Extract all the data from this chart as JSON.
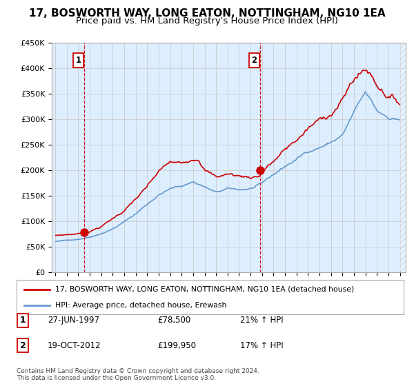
{
  "title": "17, BOSWORTH WAY, LONG EATON, NOTTINGHAM, NG10 1EA",
  "subtitle": "Price paid vs. HM Land Registry's House Price Index (HPI)",
  "ylim": [
    0,
    450000
  ],
  "yticks": [
    0,
    50000,
    100000,
    150000,
    200000,
    250000,
    300000,
    350000,
    400000,
    450000
  ],
  "ytick_labels": [
    "£0",
    "£50K",
    "£100K",
    "£150K",
    "£200K",
    "£250K",
    "£300K",
    "£350K",
    "£400K",
    "£450K"
  ],
  "legend_line1": "17, BOSWORTH WAY, LONG EATON, NOTTINGHAM, NG10 1EA (detached house)",
  "legend_line2": "HPI: Average price, detached house, Erewash",
  "sale1_date": "27-JUN-1997",
  "sale1_price": 78500,
  "sale1_hpi": "21% ↑ HPI",
  "sale2_date": "19-OCT-2012",
  "sale2_price": 199950,
  "sale2_hpi": "17% ↑ HPI",
  "copyright": "Contains HM Land Registry data © Crown copyright and database right 2024.\nThis data is licensed under the Open Government Licence v3.0.",
  "red_color": "#cc0000",
  "blue_color": "#6699cc",
  "plot_bg_color": "#ddeeff",
  "background_color": "#ffffff",
  "grid_color": "#cccccc",
  "title_fontsize": 11,
  "subtitle_fontsize": 9.5,
  "vline1_x": 1997.5,
  "vline2_x": 2012.83,
  "sale1_marker_x": 1997.5,
  "sale1_marker_y": 78500,
  "sale2_marker_x": 2012.83,
  "sale2_marker_y": 199950,
  "xlim_left": 1994.7,
  "xlim_right": 2025.5
}
